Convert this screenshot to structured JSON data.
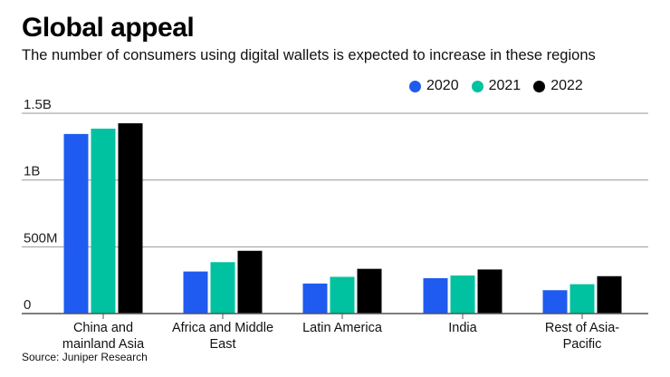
{
  "title": "Global appeal",
  "subtitle": "The number of consumers using digital wallets is expected to increase in these regions",
  "source": "Source: Juniper Research",
  "colors": {
    "2020": "#1f5bf0",
    "2021": "#00c2a0",
    "2022": "#000000",
    "grid": "#999999",
    "axis": "#555555"
  },
  "chart_data": {
    "type": "bar",
    "categories": [
      [
        "China and",
        "mainland Asia"
      ],
      [
        "Africa and Middle",
        "East"
      ],
      [
        "Latin America"
      ],
      [
        "India"
      ],
      [
        "Rest of Asia-",
        "Pacific"
      ]
    ],
    "series": [
      {
        "name": "2020",
        "values": [
          1345,
          315,
          225,
          265,
          175
        ]
      },
      {
        "name": "2021",
        "values": [
          1385,
          385,
          275,
          285,
          220
        ]
      },
      {
        "name": "2022",
        "values": [
          1425,
          470,
          335,
          330,
          280
        ]
      }
    ],
    "yunit": "millions of consumers",
    "ylim": [
      0,
      1500
    ],
    "yticks": [
      {
        "value": 0,
        "label": "0"
      },
      {
        "value": 500,
        "label": "500M"
      },
      {
        "value": 1000,
        "label": "1B"
      },
      {
        "value": 1500,
        "label": "1.5B"
      }
    ],
    "grid": true,
    "legend_position": "top-right"
  }
}
